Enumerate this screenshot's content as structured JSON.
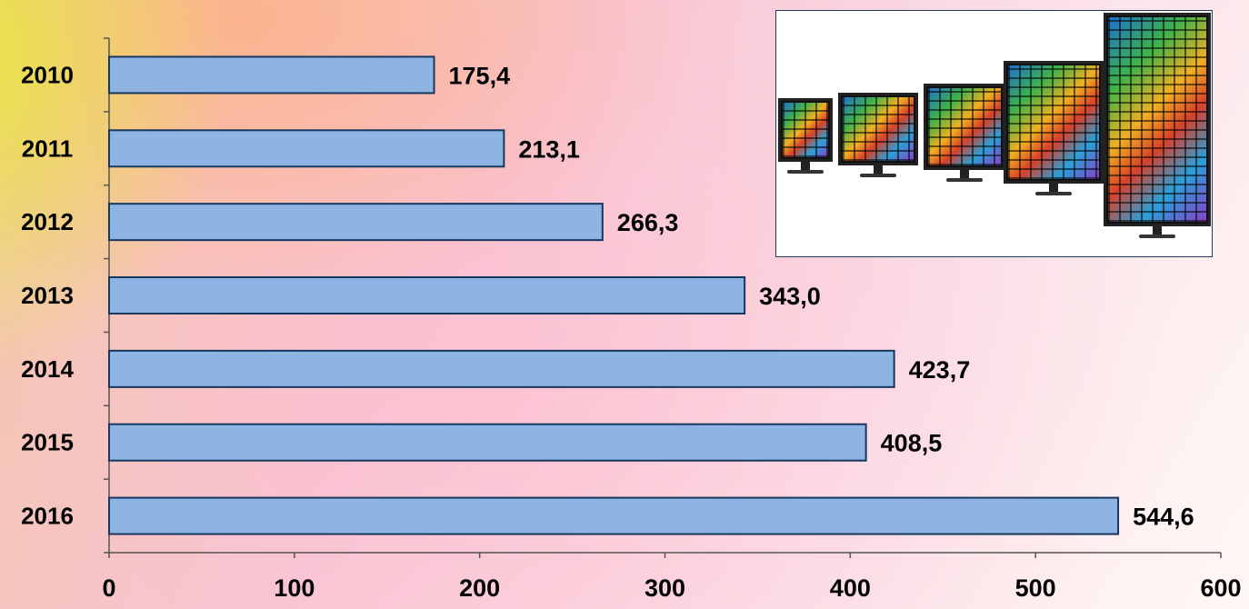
{
  "chart_data": {
    "type": "bar",
    "orientation": "horizontal",
    "categories": [
      "2010",
      "2011",
      "2012",
      "2013",
      "2014",
      "2015",
      "2016"
    ],
    "values": [
      175.4,
      213.1,
      266.3,
      343.0,
      423.7,
      408.5,
      544.6
    ],
    "value_labels": [
      "175,4",
      "213,1",
      "266,3",
      "343,0",
      "423,7",
      "408,5",
      "544,6"
    ],
    "x_ticks": [
      "0",
      "100",
      "200",
      "300",
      "400",
      "500",
      "600"
    ],
    "xlim": [
      0,
      600
    ],
    "title": "",
    "xlabel": "",
    "ylabel": "",
    "grid": false,
    "legend": "none",
    "bar_color": "#8db4e2",
    "bar_edge_color": "#17375e"
  },
  "illustration": {
    "icon": "tv-screens-photo-icon"
  }
}
